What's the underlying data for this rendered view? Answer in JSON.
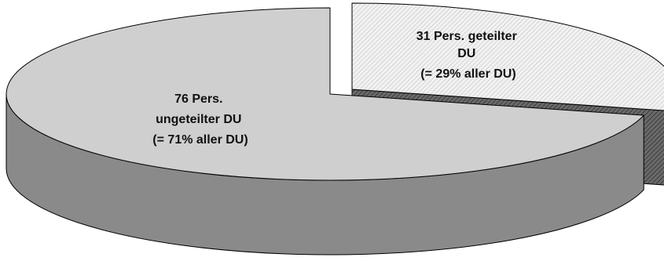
{
  "chart_data": {
    "type": "pie",
    "style": "3d-exploded",
    "slices": [
      {
        "value": 76,
        "percent": 71,
        "lines": [
          "76 Pers.",
          "ungeteilter DU",
          "(= 71% aller DU)"
        ],
        "top_color": "#cfcfcf",
        "side_color": "#8a8a8a",
        "pattern": "solid"
      },
      {
        "value": 31,
        "percent": 29,
        "lines": [
          "31 Pers. geteilter",
          "DU",
          "(= 29% aller DU)"
        ],
        "top_color": "#ededed",
        "side_color": "#4a4a4a",
        "pattern": "hatched"
      }
    ],
    "legend": "none"
  }
}
